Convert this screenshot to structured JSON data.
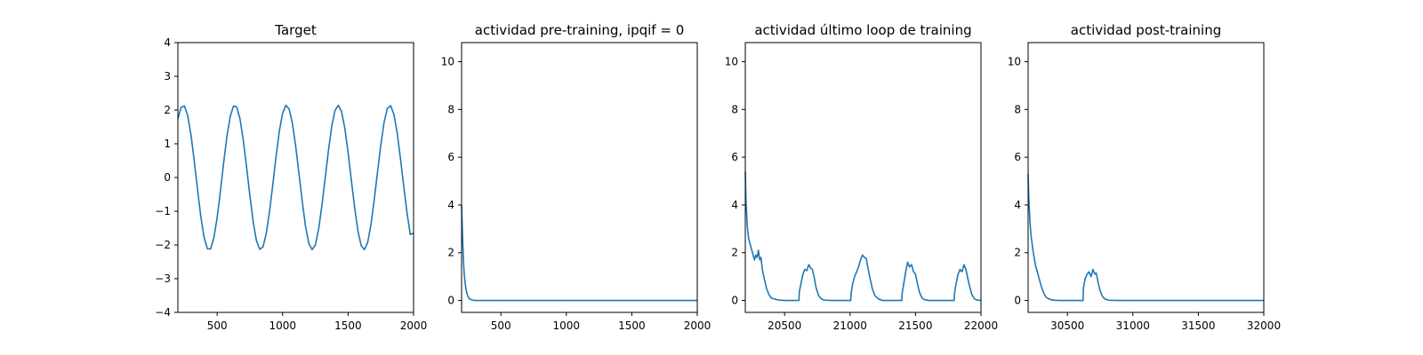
{
  "colors": {
    "line": "#1f77b4",
    "axes": "#000000",
    "background": "#ffffff"
  },
  "chart_data": [
    {
      "type": "line",
      "title": "Target",
      "xlabel": "",
      "ylabel": "",
      "xlim": [
        200,
        2000
      ],
      "ylim": [
        -4,
        4
      ],
      "xticks": [
        500,
        1000,
        1500,
        2000
      ],
      "yticks": [
        -4,
        -3,
        -2,
        -1,
        0,
        1,
        2,
        3,
        4
      ],
      "grid": false,
      "legend": "none",
      "series": [
        {
          "x": [
            200,
            225,
            250,
            275,
            300,
            325,
            350,
            375,
            400,
            425,
            450,
            475,
            500,
            525,
            550,
            575,
            600,
            625,
            650,
            675,
            700,
            725,
            750,
            775,
            800,
            825,
            850,
            875,
            900,
            925,
            950,
            975,
            1000,
            1025,
            1050,
            1075,
            1100,
            1125,
            1150,
            1175,
            1200,
            1225,
            1250,
            1275,
            1300,
            1325,
            1350,
            1375,
            1400,
            1425,
            1450,
            1475,
            1500,
            1525,
            1550,
            1575,
            1600,
            1625,
            1650,
            1675,
            1700,
            1725,
            1750,
            1775,
            1800,
            1825,
            1850,
            1875,
            1900,
            1925,
            1950,
            1975,
            2000
          ],
          "y": [
            1.74,
            2.08,
            2.12,
            1.84,
            1.27,
            0.49,
            -0.35,
            -1.15,
            -1.77,
            -2.11,
            -2.12,
            -1.79,
            -1.19,
            -0.4,
            0.45,
            1.23,
            1.81,
            2.12,
            2.09,
            1.73,
            1.09,
            0.3,
            -0.54,
            -1.31,
            -1.87,
            -2.13,
            -2.06,
            -1.66,
            -1.01,
            -0.21,
            0.63,
            1.38,
            1.91,
            2.14,
            2.03,
            1.6,
            0.92,
            0.11,
            -0.71,
            -1.45,
            -1.95,
            -2.14,
            -2.0,
            -1.53,
            -0.83,
            -0.02,
            0.8,
            1.52,
            1.99,
            2.14,
            1.96,
            1.46,
            0.74,
            -0.08,
            -0.89,
            -1.58,
            -2.02,
            -2.14,
            -1.92,
            -1.39,
            -0.65,
            0.17,
            0.97,
            1.64,
            2.05,
            2.13,
            1.87,
            1.32,
            0.56,
            -0.26,
            -1.05,
            -1.69,
            -1.65
          ]
        }
      ]
    },
    {
      "type": "line",
      "title": "actividad pre-training, ipqif = 0",
      "xlabel": "",
      "ylabel": "",
      "xlim": [
        200,
        2000
      ],
      "ylim": [
        -0.5,
        10.8
      ],
      "xticks": [
        500,
        1000,
        1500,
        2000
      ],
      "yticks": [
        0,
        2,
        4,
        6,
        8,
        10
      ],
      "grid": false,
      "legend": "none",
      "series": [
        {
          "x": [
            200,
            205,
            210,
            215,
            220,
            230,
            240,
            250,
            260,
            280,
            300,
            350,
            400,
            500,
            1000,
            1500,
            2000
          ],
          "y": [
            4.0,
            3.1,
            2.3,
            1.6,
            1.1,
            0.6,
            0.3,
            0.15,
            0.07,
            0.02,
            0.0,
            0.0,
            0.0,
            0.0,
            0.0,
            0.0,
            0.0
          ]
        }
      ]
    },
    {
      "type": "line",
      "title": "actividad último loop de training",
      "xlabel": "",
      "ylabel": "",
      "xlim": [
        20200,
        22000
      ],
      "ylim": [
        -0.5,
        10.8
      ],
      "xticks": [
        20500,
        21000,
        21500,
        22000
      ],
      "yticks": [
        0,
        2,
        4,
        6,
        8,
        10
      ],
      "grid": false,
      "legend": "none",
      "series": [
        {
          "x": [
            20200,
            20205,
            20215,
            20225,
            20240,
            20255,
            20270,
            20280,
            20290,
            20300,
            20310,
            20320,
            20330,
            20345,
            20360,
            20380,
            20400,
            20450,
            20500,
            20550,
            20600,
            20610,
            20612,
            20625,
            20640,
            20655,
            20670,
            20685,
            20700,
            20712,
            20725,
            20740,
            20760,
            20780,
            20800,
            20850,
            20900,
            20950,
            21000,
            21005,
            21008,
            21020,
            21035,
            21050,
            21065,
            21080,
            21095,
            21110,
            21125,
            21135,
            21150,
            21170,
            21190,
            21220,
            21250,
            21300,
            21350,
            21390,
            21395,
            21398,
            21410,
            21425,
            21440,
            21455,
            21470,
            21485,
            21500,
            21515,
            21530,
            21550,
            21570,
            21600,
            21650,
            21700,
            21750,
            21790,
            21795,
            21798,
            21810,
            21825,
            21840,
            21855,
            21870,
            21885,
            21900,
            21915,
            21930,
            21950,
            21970,
            22000
          ],
          "y": [
            5.4,
            4.2,
            3.1,
            2.6,
            2.3,
            2.0,
            1.7,
            1.9,
            1.8,
            2.1,
            1.7,
            1.8,
            1.3,
            0.9,
            0.55,
            0.25,
            0.1,
            0.02,
            0.0,
            0.0,
            0.0,
            0.0,
            0.35,
            0.7,
            1.1,
            1.3,
            1.25,
            1.5,
            1.35,
            1.3,
            1.0,
            0.55,
            0.2,
            0.07,
            0.02,
            0.0,
            0.0,
            0.0,
            0.0,
            0.0,
            0.3,
            0.7,
            1.0,
            1.2,
            1.4,
            1.7,
            1.9,
            1.8,
            1.75,
            1.4,
            1.0,
            0.5,
            0.2,
            0.05,
            0.0,
            0.0,
            0.0,
            0.0,
            0.0,
            0.3,
            0.7,
            1.2,
            1.6,
            1.4,
            1.5,
            1.2,
            1.1,
            0.7,
            0.35,
            0.1,
            0.03,
            0.0,
            0.0,
            0.0,
            0.0,
            0.0,
            0.0,
            0.3,
            0.7,
            1.1,
            1.3,
            1.2,
            1.5,
            1.3,
            0.9,
            0.55,
            0.25,
            0.07,
            0.02,
            0.0
          ]
        }
      ]
    },
    {
      "type": "line",
      "title": "actividad post-training",
      "xlabel": "",
      "ylabel": "",
      "xlim": [
        30200,
        32000
      ],
      "ylim": [
        -0.5,
        10.8
      ],
      "xticks": [
        30500,
        31000,
        31500,
        32000
      ],
      "yticks": [
        0,
        2,
        4,
        6,
        8,
        10
      ],
      "grid": false,
      "legend": "none",
      "series": [
        {
          "x": [
            30200,
            30205,
            30215,
            30225,
            30240,
            30255,
            30270,
            30285,
            30300,
            30320,
            30340,
            30370,
            30400,
            30450,
            30500,
            30550,
            30600,
            30620,
            30622,
            30635,
            30650,
            30665,
            30680,
            30695,
            30710,
            30720,
            30735,
            30750,
            30770,
            30790,
            30820,
            30900,
            31000,
            31500,
            32000
          ],
          "y": [
            5.3,
            4.3,
            3.2,
            2.6,
            2.0,
            1.5,
            1.2,
            0.9,
            0.6,
            0.3,
            0.12,
            0.04,
            0.01,
            0.0,
            0.0,
            0.0,
            0.0,
            0.0,
            0.5,
            0.9,
            1.1,
            1.2,
            1.0,
            1.3,
            1.1,
            1.15,
            0.75,
            0.4,
            0.15,
            0.05,
            0.01,
            0.0,
            0.0,
            0.0,
            0.0
          ]
        }
      ]
    }
  ]
}
